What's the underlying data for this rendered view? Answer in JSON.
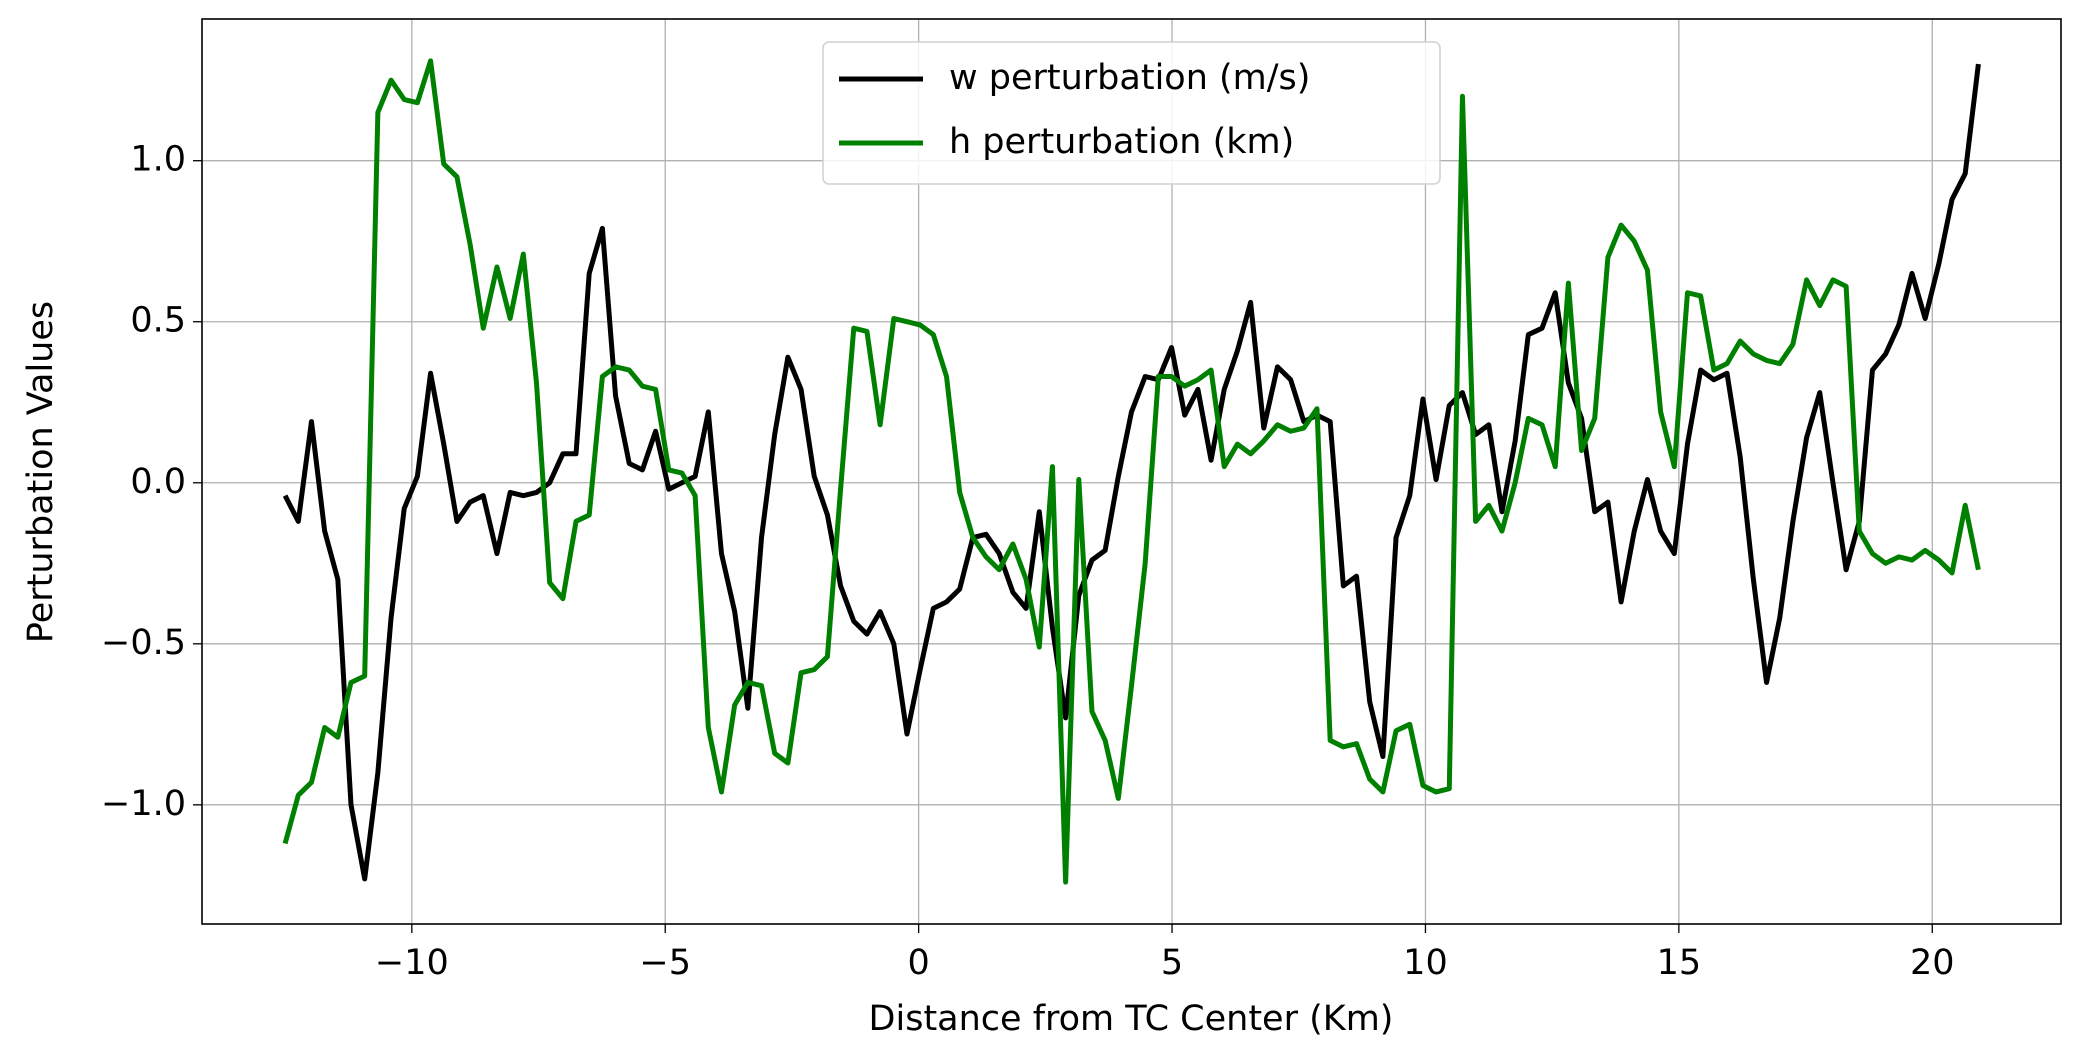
{
  "chart_data": {
    "type": "line",
    "xlabel": "Distance from TC Center (Km)",
    "ylabel": "Perturbation Values",
    "xlim": [
      -14.14,
      22.54
    ],
    "ylim": [
      -1.37,
      1.44
    ],
    "xticks": [
      {
        "value": -10,
        "label": "−10"
      },
      {
        "value": -5,
        "label": "−5"
      },
      {
        "value": 0,
        "label": "0"
      },
      {
        "value": 5,
        "label": "5"
      },
      {
        "value": 10,
        "label": "10"
      },
      {
        "value": 15,
        "label": "15"
      },
      {
        "value": 20,
        "label": "20"
      }
    ],
    "yticks": [
      {
        "value": -1.0,
        "label": "−1.0"
      },
      {
        "value": -0.5,
        "label": "−0.5"
      },
      {
        "value": 0.0,
        "label": "0.0"
      },
      {
        "value": 0.5,
        "label": "0.5"
      },
      {
        "value": 1.0,
        "label": "1.0"
      }
    ],
    "grid": true,
    "legend": "upper center",
    "x": [
      -12.5,
      -12.24,
      -11.98,
      -11.72,
      -11.46,
      -11.2,
      -10.93,
      -10.67,
      -10.41,
      -10.15,
      -9.89,
      -9.63,
      -9.37,
      -9.11,
      -8.85,
      -8.59,
      -8.32,
      -8.06,
      -7.8,
      -7.54,
      -7.28,
      -7.02,
      -6.76,
      -6.5,
      -6.24,
      -5.98,
      -5.71,
      -5.45,
      -5.19,
      -4.93,
      -4.67,
      -4.41,
      -4.15,
      -3.89,
      -3.63,
      -3.37,
      -3.1,
      -2.84,
      -2.58,
      -2.32,
      -2.06,
      -1.8,
      -1.54,
      -1.28,
      -1.02,
      -0.76,
      -0.49,
      -0.23,
      0.03,
      0.29,
      0.55,
      0.81,
      1.07,
      1.33,
      1.59,
      1.86,
      2.12,
      2.38,
      2.64,
      2.9,
      3.16,
      3.42,
      3.68,
      3.94,
      4.2,
      4.47,
      4.73,
      4.99,
      5.25,
      5.51,
      5.77,
      6.03,
      6.29,
      6.55,
      6.81,
      7.08,
      7.34,
      7.6,
      7.86,
      8.12,
      8.38,
      8.64,
      8.9,
      9.16,
      9.42,
      9.69,
      9.95,
      10.21,
      10.47,
      10.73,
      10.99,
      11.25,
      11.51,
      11.77,
      12.03,
      12.3,
      12.56,
      12.82,
      13.08,
      13.34,
      13.6,
      13.86,
      14.12,
      14.38,
      14.64,
      14.91,
      15.17,
      15.43,
      15.69,
      15.95,
      16.21,
      16.47,
      16.73,
      16.99,
      17.25,
      17.52,
      17.78,
      18.04,
      18.3,
      18.56,
      18.82,
      19.08,
      19.34,
      19.6,
      19.86,
      20.13,
      20.39,
      20.65,
      20.91
    ],
    "series": [
      {
        "name": "w perturbation (m/s)",
        "color": "#000000",
        "values": [
          -0.04,
          -0.12,
          0.19,
          -0.15,
          -0.3,
          -1.0,
          -1.23,
          -0.9,
          -0.42,
          -0.08,
          0.02,
          0.34,
          0.12,
          -0.12,
          -0.06,
          -0.04,
          -0.22,
          -0.03,
          -0.04,
          -0.03,
          0.0,
          0.09,
          0.09,
          0.65,
          0.79,
          0.27,
          0.06,
          0.04,
          0.16,
          -0.02,
          0.0,
          0.02,
          0.22,
          -0.22,
          -0.4,
          -0.7,
          -0.17,
          0.15,
          0.39,
          0.29,
          0.02,
          -0.1,
          -0.32,
          -0.43,
          -0.47,
          -0.4,
          -0.5,
          -0.78,
          -0.58,
          -0.39,
          -0.37,
          -0.33,
          -0.17,
          -0.16,
          -0.22,
          -0.34,
          -0.39,
          -0.09,
          -0.45,
          -0.73,
          -0.35,
          -0.24,
          -0.21,
          0.02,
          0.22,
          0.33,
          0.32,
          0.42,
          0.21,
          0.29,
          0.07,
          0.29,
          0.41,
          0.56,
          0.17,
          0.36,
          0.32,
          0.19,
          0.21,
          0.19,
          -0.32,
          -0.29,
          -0.68,
          -0.85,
          -0.17,
          -0.04,
          0.26,
          0.01,
          0.24,
          0.28,
          0.15,
          0.18,
          -0.09,
          0.13,
          0.46,
          0.48,
          0.59,
          0.31,
          0.2,
          -0.09,
          -0.06,
          -0.37,
          -0.15,
          0.01,
          -0.15,
          -0.22,
          0.12,
          0.35,
          0.32,
          0.34,
          0.08,
          -0.3,
          -0.62,
          -0.42,
          -0.12,
          0.14,
          0.28,
          0.0,
          -0.27,
          -0.12,
          0.35,
          0.4,
          0.49,
          0.65,
          0.51,
          0.68,
          0.88,
          0.96,
          1.3
        ]
      },
      {
        "name": "h perturbation (km)",
        "color": "#008000",
        "values": [
          -1.12,
          -0.97,
          -0.93,
          -0.76,
          -0.79,
          -0.62,
          -0.6,
          1.15,
          1.25,
          1.19,
          1.18,
          1.31,
          0.99,
          0.95,
          0.74,
          0.48,
          0.67,
          0.51,
          0.71,
          0.31,
          -0.31,
          -0.36,
          -0.12,
          -0.1,
          0.33,
          0.36,
          0.35,
          0.3,
          0.29,
          0.04,
          0.03,
          -0.04,
          -0.76,
          -0.96,
          -0.69,
          -0.62,
          -0.63,
          -0.84,
          -0.87,
          -0.59,
          -0.58,
          -0.54,
          -0.02,
          0.48,
          0.47,
          0.18,
          0.51,
          0.5,
          0.49,
          0.46,
          0.33,
          -0.03,
          -0.17,
          -0.23,
          -0.27,
          -0.19,
          -0.3,
          -0.51,
          0.05,
          -1.24,
          0.01,
          -0.71,
          -0.8,
          -0.98,
          -0.63,
          -0.25,
          0.33,
          0.33,
          0.3,
          0.32,
          0.35,
          0.05,
          0.12,
          0.09,
          0.13,
          0.18,
          0.16,
          0.17,
          0.23,
          -0.8,
          -0.82,
          -0.81,
          -0.92,
          -0.96,
          -0.77,
          -0.75,
          -0.94,
          -0.96,
          -0.95,
          1.2,
          -0.12,
          -0.07,
          -0.15,
          0.0,
          0.2,
          0.18,
          0.05,
          0.62,
          0.1,
          0.2,
          0.7,
          0.8,
          0.75,
          0.66,
          0.22,
          0.05,
          0.59,
          0.58,
          0.35,
          0.37,
          0.44,
          0.4,
          0.38,
          0.37,
          0.43,
          0.63,
          0.55,
          0.63,
          0.61,
          -0.15,
          -0.22,
          -0.25,
          -0.23,
          -0.24,
          -0.21,
          -0.24,
          -0.28,
          -0.07,
          -0.27
        ]
      }
    ]
  }
}
